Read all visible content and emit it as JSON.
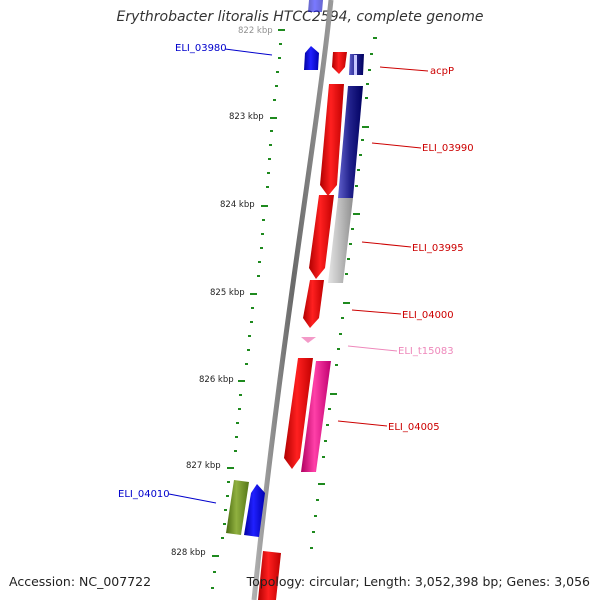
{
  "title": "Erythrobacter litoralis HTCC2594, complete genome",
  "accession": "Accession: NC_007722",
  "topology": "Topology: circular; Length: 3,052,398 bp; Genes: 3,056",
  "colors": {
    "backbone": "#8a8a8a",
    "tick": "#1e8a1e",
    "strand_plus_label": "#0000cc",
    "strand_minus_label": "#cc0000",
    "trna_label": "#ee88bb"
  },
  "scale_labels": [
    "822 kbp",
    "823 kbp",
    "824 kbp",
    "825 kbp",
    "826 kbp",
    "827 kbp",
    "828 kbp"
  ],
  "genes": [
    {
      "id": "ELI_03980",
      "color": "blue",
      "icon": "gene-arrow-up"
    },
    {
      "id": "acpP",
      "color": "red",
      "icon": "gene-arrow-down"
    },
    {
      "id": "ELI_03990",
      "color": "red",
      "icon": "gene-arrow-down"
    },
    {
      "id": "ELI_03995",
      "color": "red",
      "icon": "gene-arrow-down"
    },
    {
      "id": "ELI_04000",
      "color": "red",
      "icon": "gene-arrow-down"
    },
    {
      "id": "ELI_t15083",
      "color": "pink",
      "icon": "trna-arrow"
    },
    {
      "id": "ELI_04005",
      "color": "red",
      "icon": "gene-arrow-down"
    },
    {
      "id": "ELI_04010",
      "color": "blue",
      "icon": "gene-arrow-up"
    }
  ]
}
